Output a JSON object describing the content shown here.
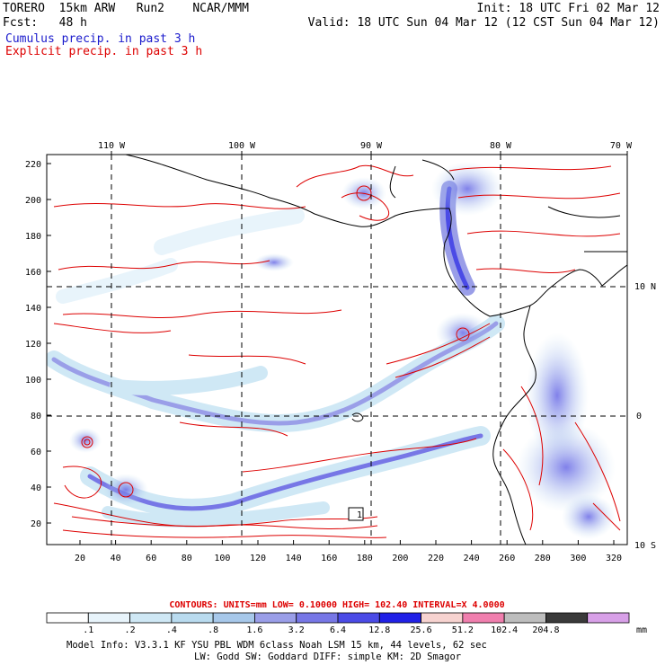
{
  "header": {
    "model": "TORERO  15km ARW   Run2    NCAR/MMM",
    "init": "Init: 18 UTC Fri 02 Mar 12",
    "fcst": "Fcst:   48 h",
    "valid": "Valid: 18 UTC Sun 04 Mar 12 (12 CST Sun 04 Mar 12)",
    "field1": "Cumulus precip. in past 3 h",
    "field2": "Explicit precip. in past 3 h",
    "field1_color": "#1a1acc",
    "field2_color": "#dd0000"
  },
  "map": {
    "lon_labels": [
      "110 W",
      "100 W",
      "90 W",
      "80 W",
      "70 W"
    ],
    "lat_labels": [
      "10 N",
      "0",
      "10 S"
    ],
    "y_ticks": [
      "220",
      "200",
      "180",
      "160",
      "140",
      "120",
      "100",
      "80",
      "60",
      "40",
      "20"
    ],
    "x_ticks": [
      "20",
      "40",
      "60",
      "80",
      "100",
      "120",
      "140",
      "160",
      "180",
      "200",
      "220",
      "240",
      "260",
      "280",
      "300",
      "320"
    ],
    "box_label": "1"
  },
  "contours_info": {
    "text": "CONTOURS:  UNITS=mm  LOW= 0.10000      HIGH=  102.40      INTERVAL=X  4.0000",
    "color": "#dd0000"
  },
  "colorbar": {
    "labels": [
      ".1",
      ".2",
      ".4",
      ".8",
      "1.6",
      "3.2",
      "6.4",
      "12.8",
      "25.6",
      "51.2",
      "102.4",
      "204.8"
    ],
    "unit": "mm",
    "colors": [
      "#ffffff",
      "#e8f4fb",
      "#cfe8f5",
      "#b9dbef",
      "#a7c8ea",
      "#9a9ee8",
      "#7777e6",
      "#4b4be6",
      "#2020e6",
      "#f7d3d0",
      "#f07fae",
      "#bdbdbd",
      "#3a3a3a",
      "#d8a0e8"
    ]
  },
  "footer": {
    "line1": "Model Info: V3.3.1    KF     YSU PBL  WDM 6class  Noah LSM  15 km,    44 levels,    62 sec",
    "line2": "LW: Godd SW: Goddard DIFF: simple KM: 2D Smagor"
  }
}
